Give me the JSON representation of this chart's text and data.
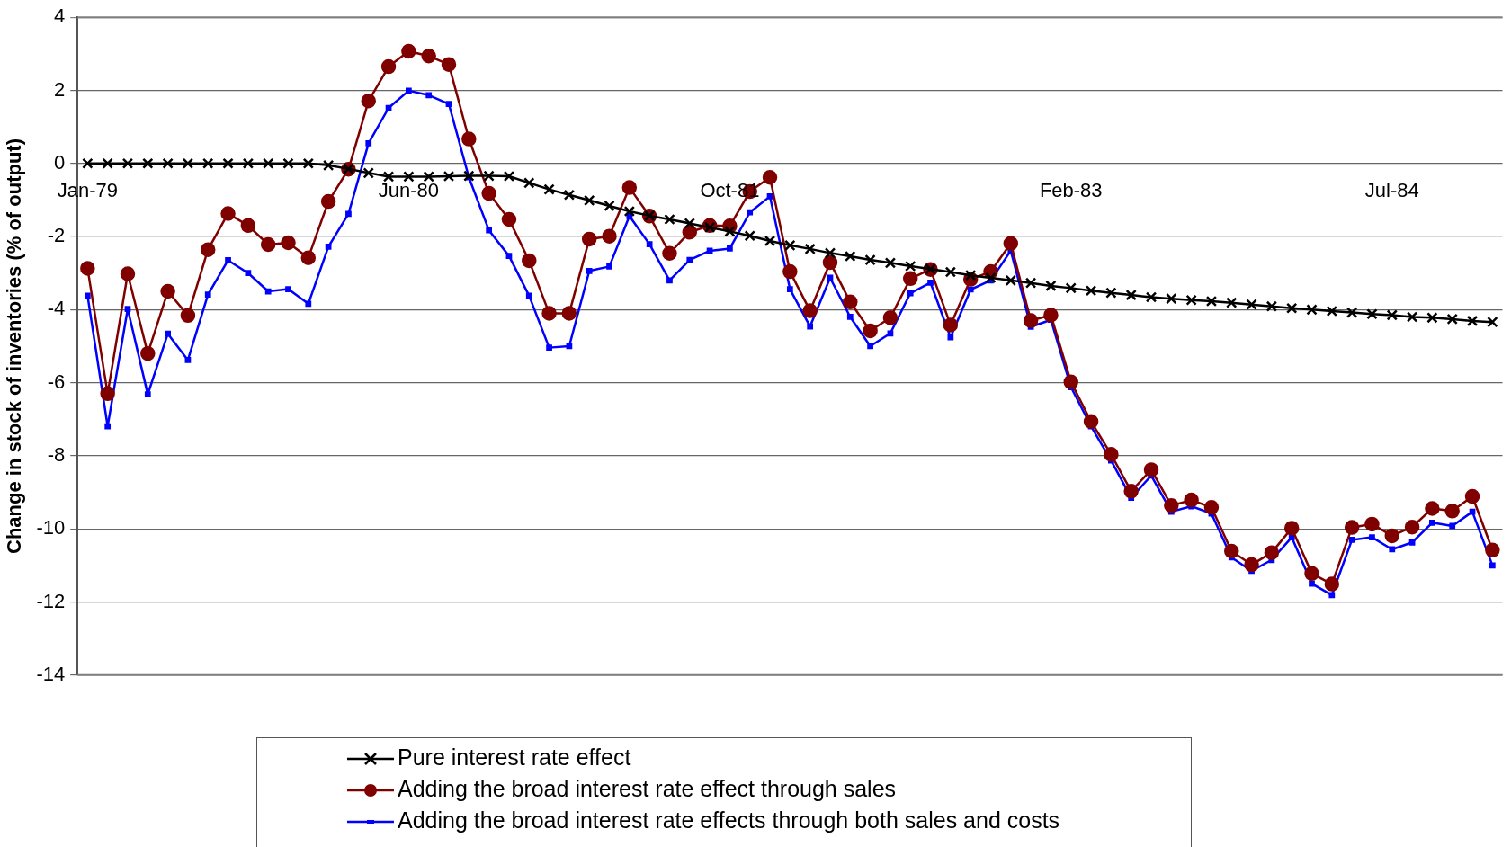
{
  "chart_data": {
    "type": "line",
    "ylabel": "Change in stock of inventories (% of output)",
    "categories": [
      "Jan-79",
      null,
      null,
      null,
      null,
      null,
      null,
      null,
      null,
      null,
      null,
      null,
      null,
      null,
      null,
      null,
      "Jun-80",
      null,
      null,
      null,
      null,
      null,
      null,
      null,
      null,
      null,
      null,
      null,
      null,
      null,
      null,
      null,
      "Oct-81",
      null,
      null,
      null,
      null,
      null,
      null,
      null,
      null,
      null,
      null,
      null,
      null,
      null,
      null,
      null,
      null,
      "Feb-83",
      null,
      null,
      null,
      null,
      null,
      null,
      null,
      null,
      null,
      null,
      null,
      null,
      null,
      null,
      null,
      "Jul-84",
      null,
      null,
      null,
      null,
      null
    ],
    "series": [
      {
        "name": "Pure interest rate effect",
        "color": "#000000",
        "marker": "cross",
        "values": [
          0,
          0,
          0,
          0,
          0,
          0,
          0,
          0,
          0,
          0,
          0,
          0,
          -0.05,
          -0.15,
          -0.26,
          -0.36,
          -0.36,
          -0.36,
          -0.35,
          -0.34,
          -0.34,
          -0.35,
          -0.53,
          -0.71,
          -0.86,
          -1.01,
          -1.16,
          -1.31,
          -1.43,
          -1.53,
          -1.64,
          -1.75,
          -1.86,
          -1.98,
          -2.12,
          -2.24,
          -2.34,
          -2.45,
          -2.54,
          -2.64,
          -2.72,
          -2.81,
          -2.89,
          -2.97,
          -3.06,
          -3.13,
          -3.2,
          -3.27,
          -3.35,
          -3.41,
          -3.48,
          -3.54,
          -3.6,
          -3.66,
          -3.7,
          -3.74,
          -3.77,
          -3.81,
          -3.86,
          -3.91,
          -3.96,
          -4.0,
          -4.04,
          -4.08,
          -4.12,
          -4.15,
          -4.2,
          -4.22,
          -4.26,
          -4.31,
          -4.34
        ]
      },
      {
        "name": "Adding the broad interest rate effect through sales",
        "color": "#800000",
        "marker": "circle",
        "values": [
          -2.87,
          -6.3,
          -3.02,
          -5.2,
          -3.5,
          -4.16,
          -2.36,
          -1.37,
          -1.7,
          -2.22,
          -2.17,
          -2.58,
          -1.04,
          -0.16,
          1.71,
          2.65,
          3.07,
          2.94,
          2.71,
          0.67,
          -0.82,
          -1.53,
          -2.66,
          -4.1,
          -4.1,
          -2.07,
          -1.99,
          -0.66,
          -1.44,
          -2.46,
          -1.88,
          -1.7,
          -1.71,
          -0.77,
          -0.38,
          -2.96,
          -4.03,
          -2.71,
          -3.79,
          -4.58,
          -4.22,
          -3.15,
          -2.9,
          -4.42,
          -3.17,
          -2.96,
          -2.19,
          -4.3,
          -4.15,
          -5.98,
          -7.06,
          -7.96,
          -8.97,
          -8.38,
          -9.36,
          -9.21,
          -9.41,
          -10.61,
          -10.98,
          -10.65,
          -9.98,
          -11.22,
          -11.51,
          -9.96,
          -9.87,
          -10.19,
          -9.95,
          -9.44,
          -9.51,
          -9.11,
          -10.58
        ]
      },
      {
        "name": "Adding the broad interest rate effects through both sales and costs",
        "color": "#0000ff",
        "marker": "square",
        "values": [
          -3.62,
          -7.19,
          -3.98,
          -6.32,
          -4.66,
          -5.38,
          -3.59,
          -2.65,
          -3.0,
          -3.5,
          -3.44,
          -3.84,
          -2.28,
          -1.38,
          0.55,
          1.52,
          1.99,
          1.87,
          1.63,
          -0.38,
          -1.83,
          -2.53,
          -3.62,
          -5.04,
          -5.0,
          -2.94,
          -2.82,
          -1.44,
          -2.21,
          -3.2,
          -2.64,
          -2.39,
          -2.33,
          -1.34,
          -0.9,
          -3.44,
          -4.46,
          -3.13,
          -4.2,
          -5.0,
          -4.65,
          -3.55,
          -3.26,
          -4.76,
          -3.45,
          -3.2,
          -2.39,
          -4.47,
          -4.28,
          -6.12,
          -7.19,
          -8.13,
          -9.15,
          -8.54,
          -9.53,
          -9.38,
          -9.58,
          -10.78,
          -11.15,
          -10.85,
          -10.23,
          -11.5,
          -11.81,
          -10.3,
          -10.23,
          -10.56,
          -10.37,
          -9.83,
          -9.92,
          -9.53,
          -11.0
        ]
      }
    ],
    "ylim": [
      -14,
      4
    ],
    "yticks": [
      -14,
      -12,
      -10,
      -8,
      -6,
      -4,
      -2,
      0,
      2,
      4
    ],
    "grid": "y",
    "line_style": "solid",
    "legend": "bottom"
  }
}
